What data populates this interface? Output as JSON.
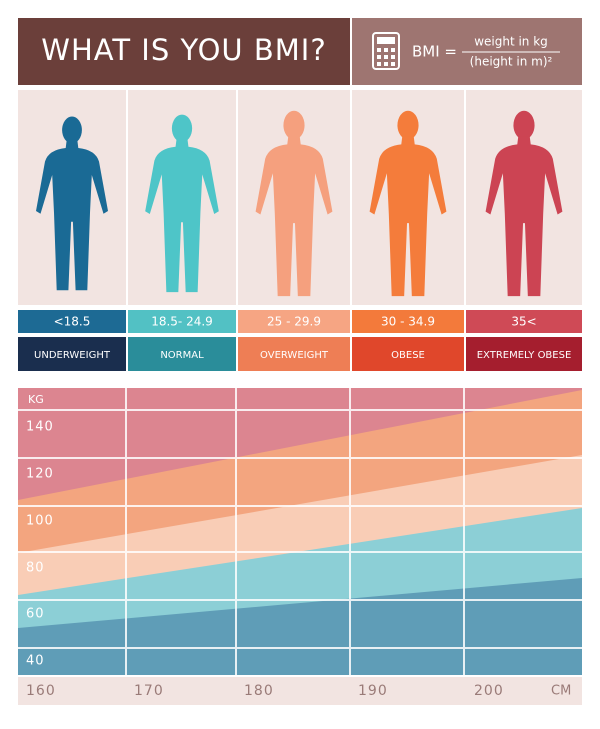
{
  "header": {
    "title": "WHAT IS YOU BMI?",
    "formula": {
      "lhs": "BMI =",
      "numerator": "weight in kg",
      "denominator": "(height in m)²"
    }
  },
  "categories": [
    {
      "range": "<18.5",
      "label": "UNDERWEIGHT"
    },
    {
      "range": "18.5- 24.9",
      "label": "NORMAL"
    },
    {
      "range": "25 - 29.9",
      "label": "OVERWEIGHT"
    },
    {
      "range": "30 - 34.9",
      "label": "OBESE"
    },
    {
      "range": "35<",
      "label": "EXTREMELY OBESE"
    }
  ],
  "chart": {
    "y_unit": "KG",
    "y_labels": [
      "140",
      "120",
      "100",
      "80",
      "60",
      "40"
    ],
    "x_labels": [
      "160",
      "170",
      "180",
      "190",
      "200"
    ],
    "x_unit": "CM"
  }
}
